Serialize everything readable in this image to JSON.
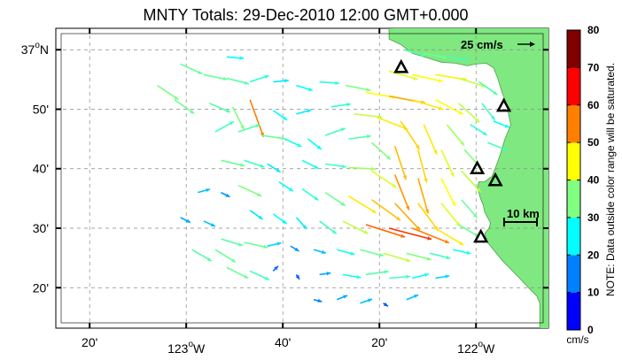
{
  "title": "MNTY Totals: 29-Dec-2010 12:00 GMT+0.000",
  "lat_labels": [
    {
      "lat": 37.0,
      "label": "37",
      "deg": "o",
      "suffix": "N",
      "major": true
    },
    {
      "lat": 36.8333,
      "label": "50'",
      "major": false
    },
    {
      "lat": 36.6667,
      "label": "40'",
      "major": false
    },
    {
      "lat": 36.5,
      "label": "30'",
      "major": false
    },
    {
      "lat": 36.3333,
      "label": "20'",
      "major": false
    }
  ],
  "lon_labels": [
    {
      "lon": -123.3333,
      "label": "20'",
      "major": false
    },
    {
      "lon": -123.0,
      "label": "123",
      "deg": "o",
      "suffix": "W",
      "major": true
    },
    {
      "lon": -122.6667,
      "label": "40'",
      "major": false
    },
    {
      "lon": -122.3333,
      "label": "20'",
      "major": false
    },
    {
      "lon": -122.0,
      "label": "122",
      "deg": "o",
      "suffix": "W",
      "major": true
    }
  ],
  "map_extent": {
    "lon": [
      -123.45,
      -121.75
    ],
    "lat": [
      36.22,
      37.06
    ]
  },
  "colorbar": {
    "min": 0,
    "max": 80,
    "ticks": [
      "0",
      "10",
      "20",
      "30",
      "40",
      "50",
      "60",
      "70",
      "80"
    ],
    "unit": "cm/s",
    "note": "NOTE: Data outside color range will be saturated.",
    "colors": [
      "#0000ff",
      "#0080ff",
      "#00ffff",
      "#80ff80",
      "#ffff00",
      "#ff8000",
      "#ff0000",
      "#800000"
    ]
  },
  "reference_vector": {
    "label": "25 cm/s",
    "speed": 25
  },
  "distance_scale": {
    "label": "10 km"
  },
  "land_color": "#80e880",
  "stations": [
    {
      "lon": -122.2583,
      "lat": 36.95
    },
    {
      "lon": -121.9042,
      "lat": 36.8417
    },
    {
      "lon": -121.9958,
      "lat": 36.6667
    },
    {
      "lon": -121.9333,
      "lat": 36.6333
    },
    {
      "lon": -121.9833,
      "lat": 36.475
    }
  ],
  "coastline": [
    [
      -122.3,
      37.06
    ],
    [
      -122.3,
      37.03
    ],
    [
      -122.26,
      37.015
    ],
    [
      -122.22,
      36.99
    ],
    [
      -122.16,
      36.975
    ],
    [
      -122.12,
      36.965
    ],
    [
      -122.07,
      36.962
    ],
    [
      -122.03,
      36.955
    ],
    [
      -122.0,
      36.96
    ],
    [
      -121.965,
      36.962
    ],
    [
      -121.94,
      36.95
    ],
    [
      -121.925,
      36.92
    ],
    [
      -121.91,
      36.88
    ],
    [
      -121.895,
      36.85
    ],
    [
      -121.89,
      36.83
    ],
    [
      -121.885,
      36.81
    ],
    [
      -121.88,
      36.79
    ],
    [
      -121.89,
      36.77
    ],
    [
      -121.9,
      36.75
    ],
    [
      -121.915,
      36.71
    ],
    [
      -121.93,
      36.675
    ],
    [
      -121.945,
      36.645
    ],
    [
      -121.97,
      36.63
    ],
    [
      -121.99,
      36.63
    ],
    [
      -121.995,
      36.615
    ],
    [
      -121.985,
      36.585
    ],
    [
      -121.975,
      36.565
    ],
    [
      -121.97,
      36.545
    ],
    [
      -121.96,
      36.53
    ],
    [
      -121.95,
      36.515
    ],
    [
      -121.955,
      36.5
    ],
    [
      -121.97,
      36.485
    ],
    [
      -121.96,
      36.46
    ],
    [
      -121.94,
      36.44
    ],
    [
      -121.91,
      36.41
    ],
    [
      -121.88,
      36.385
    ],
    [
      -121.85,
      36.36
    ],
    [
      -121.815,
      36.33
    ],
    [
      -121.79,
      36.31
    ],
    [
      -121.78,
      36.29
    ],
    [
      -121.78,
      36.22
    ]
  ],
  "vectors": [
    {
      "lon": -122.25,
      "lat": 37.0,
      "u": 28,
      "v": -8,
      "s": 32
    },
    {
      "lon": -122.18,
      "lat": 36.99,
      "u": 30,
      "v": -6,
      "s": 34
    },
    {
      "lon": -122.1,
      "lat": 36.98,
      "u": 26,
      "v": -4,
      "s": 30
    },
    {
      "lon": -122.3,
      "lat": 36.94,
      "u": 34,
      "v": -10,
      "s": 42
    },
    {
      "lon": -122.22,
      "lat": 36.93,
      "u": 36,
      "v": -8,
      "s": 44
    },
    {
      "lon": -122.14,
      "lat": 36.93,
      "u": 38,
      "v": -6,
      "s": 45
    },
    {
      "lon": -122.06,
      "lat": 36.92,
      "u": 32,
      "v": -10,
      "s": 40
    },
    {
      "lon": -121.99,
      "lat": 36.91,
      "u": 20,
      "v": -14,
      "s": 32
    },
    {
      "lon": -122.45,
      "lat": 36.9,
      "u": 30,
      "v": -6,
      "s": 36
    },
    {
      "lon": -122.38,
      "lat": 36.88,
      "u": 36,
      "v": -6,
      "s": 44
    },
    {
      "lon": -122.3,
      "lat": 36.87,
      "u": 42,
      "v": -8,
      "s": 52
    },
    {
      "lon": -122.22,
      "lat": 36.86,
      "u": 38,
      "v": -12,
      "s": 46
    },
    {
      "lon": -122.14,
      "lat": 36.86,
      "u": 30,
      "v": -16,
      "s": 44
    },
    {
      "lon": -122.06,
      "lat": 36.85,
      "u": 22,
      "v": -20,
      "s": 40
    },
    {
      "lon": -121.98,
      "lat": 36.85,
      "u": 14,
      "v": -18,
      "s": 30
    },
    {
      "lon": -122.5,
      "lat": 36.84,
      "u": 28,
      "v": 4,
      "s": 28
    },
    {
      "lon": -122.42,
      "lat": 36.82,
      "u": 34,
      "v": -4,
      "s": 40
    },
    {
      "lon": -122.34,
      "lat": 36.81,
      "u": 36,
      "v": -14,
      "s": 46
    },
    {
      "lon": -122.26,
      "lat": 36.8,
      "u": 20,
      "v": -30,
      "s": 48
    },
    {
      "lon": -122.18,
      "lat": 36.79,
      "u": 14,
      "v": -32,
      "s": 46
    },
    {
      "lon": -122.1,
      "lat": 36.79,
      "u": 18,
      "v": -22,
      "s": 38
    },
    {
      "lon": -122.02,
      "lat": 36.79,
      "u": 16,
      "v": -10,
      "s": 28
    },
    {
      "lon": -121.94,
      "lat": 36.8,
      "u": 10,
      "v": -4,
      "s": 24
    },
    {
      "lon": -122.52,
      "lat": 36.76,
      "u": 28,
      "v": 10,
      "s": 30
    },
    {
      "lon": -122.44,
      "lat": 36.75,
      "u": 30,
      "v": 4,
      "s": 32
    },
    {
      "lon": -122.36,
      "lat": 36.74,
      "u": 20,
      "v": -18,
      "s": 36
    },
    {
      "lon": -122.28,
      "lat": 36.73,
      "u": 12,
      "v": -36,
      "s": 50
    },
    {
      "lon": -122.2,
      "lat": 36.72,
      "u": 10,
      "v": -38,
      "s": 48
    },
    {
      "lon": -122.12,
      "lat": 36.72,
      "u": 14,
      "v": -30,
      "s": 42
    },
    {
      "lon": -122.04,
      "lat": 36.72,
      "u": 18,
      "v": -20,
      "s": 36
    },
    {
      "lon": -121.96,
      "lat": 36.74,
      "u": 20,
      "v": -8,
      "s": 30
    },
    {
      "lon": -122.6,
      "lat": 36.69,
      "u": 24,
      "v": -12,
      "s": 26
    },
    {
      "lon": -122.52,
      "lat": 36.68,
      "u": 28,
      "v": -4,
      "s": 30
    },
    {
      "lon": -122.44,
      "lat": 36.67,
      "u": 34,
      "v": -2,
      "s": 38
    },
    {
      "lon": -122.36,
      "lat": 36.66,
      "u": 30,
      "v": -20,
      "s": 42
    },
    {
      "lon": -122.28,
      "lat": 36.65,
      "u": 16,
      "v": -40,
      "s": 54
    },
    {
      "lon": -122.2,
      "lat": 36.64,
      "u": 12,
      "v": -42,
      "s": 52
    },
    {
      "lon": -122.12,
      "lat": 36.64,
      "u": 16,
      "v": -32,
      "s": 44
    },
    {
      "lon": -122.05,
      "lat": 36.66,
      "u": 20,
      "v": -22,
      "s": 40
    },
    {
      "lon": -122.68,
      "lat": 36.63,
      "u": 24,
      "v": -16,
      "s": 24
    },
    {
      "lon": -122.6,
      "lat": 36.61,
      "u": 26,
      "v": -18,
      "s": 28
    },
    {
      "lon": -122.52,
      "lat": 36.6,
      "u": 30,
      "v": -20,
      "s": 34
    },
    {
      "lon": -122.44,
      "lat": 36.59,
      "u": 36,
      "v": -22,
      "s": 46
    },
    {
      "lon": -122.36,
      "lat": 36.58,
      "u": 36,
      "v": -26,
      "s": 50
    },
    {
      "lon": -122.28,
      "lat": 36.57,
      "u": 28,
      "v": -30,
      "s": 52
    },
    {
      "lon": -122.2,
      "lat": 36.57,
      "u": 22,
      "v": -30,
      "s": 48
    },
    {
      "lon": -122.12,
      "lat": 36.57,
      "u": 18,
      "v": -22,
      "s": 42
    },
    {
      "lon": -122.05,
      "lat": 36.58,
      "u": 12,
      "v": -14,
      "s": 34
    },
    {
      "lon": -122.78,
      "lat": 36.55,
      "u": 20,
      "v": -14,
      "s": 22
    },
    {
      "lon": -122.7,
      "lat": 36.54,
      "u": 22,
      "v": -16,
      "s": 24
    },
    {
      "lon": -122.62,
      "lat": 36.53,
      "u": 18,
      "v": -20,
      "s": 22
    },
    {
      "lon": -122.54,
      "lat": 36.52,
      "u": 24,
      "v": -18,
      "s": 30
    },
    {
      "lon": -122.46,
      "lat": 36.52,
      "u": 32,
      "v": -16,
      "s": 40
    },
    {
      "lon": -122.38,
      "lat": 36.51,
      "u": 44,
      "v": -14,
      "s": 58
    },
    {
      "lon": -122.3,
      "lat": 36.5,
      "u": 46,
      "v": -12,
      "s": 62
    },
    {
      "lon": -122.22,
      "lat": 36.5,
      "u": 40,
      "v": -16,
      "s": 56
    },
    {
      "lon": -122.14,
      "lat": 36.5,
      "u": 30,
      "v": -18,
      "s": 46
    },
    {
      "lon": -122.06,
      "lat": 36.51,
      "u": 20,
      "v": -12,
      "s": 34
    },
    {
      "lon": -122.88,
      "lat": 36.47,
      "u": 26,
      "v": -8,
      "s": 32
    },
    {
      "lon": -122.8,
      "lat": 36.46,
      "u": 28,
      "v": -6,
      "s": 34
    },
    {
      "lon": -122.72,
      "lat": 36.45,
      "u": 18,
      "v": 4,
      "s": 20
    },
    {
      "lon": -122.64,
      "lat": 36.45,
      "u": 10,
      "v": -6,
      "s": 14
    },
    {
      "lon": -122.56,
      "lat": 36.44,
      "u": 14,
      "v": -4,
      "s": 18
    },
    {
      "lon": -122.48,
      "lat": 36.44,
      "u": 22,
      "v": -6,
      "s": 26
    },
    {
      "lon": -122.4,
      "lat": 36.44,
      "u": 30,
      "v": -8,
      "s": 34
    },
    {
      "lon": -122.32,
      "lat": 36.43,
      "u": 34,
      "v": -10,
      "s": 40
    },
    {
      "lon": -122.24,
      "lat": 36.43,
      "u": 30,
      "v": -8,
      "s": 36
    },
    {
      "lon": -122.16,
      "lat": 36.43,
      "u": 24,
      "v": -6,
      "s": 30
    },
    {
      "lon": -122.08,
      "lat": 36.44,
      "u": 18,
      "v": -4,
      "s": 26
    },
    {
      "lon": -122.86,
      "lat": 36.39,
      "u": 24,
      "v": -12,
      "s": 34
    },
    {
      "lon": -122.78,
      "lat": 36.38,
      "u": 22,
      "v": -10,
      "s": 30
    },
    {
      "lon": -122.7,
      "lat": 36.38,
      "u": 6,
      "v": 6,
      "s": 10
    },
    {
      "lon": -122.62,
      "lat": 36.37,
      "u": 4,
      "v": -6,
      "s": 8
    },
    {
      "lon": -122.54,
      "lat": 36.37,
      "u": 14,
      "v": 2,
      "s": 16
    },
    {
      "lon": -122.46,
      "lat": 36.37,
      "u": 24,
      "v": -4,
      "s": 26
    },
    {
      "lon": -122.38,
      "lat": 36.37,
      "u": 28,
      "v": 4,
      "s": 32
    },
    {
      "lon": -122.3,
      "lat": 36.36,
      "u": 24,
      "v": 2,
      "s": 30
    },
    {
      "lon": -122.22,
      "lat": 36.36,
      "u": 16,
      "v": 4,
      "s": 24
    },
    {
      "lon": -122.14,
      "lat": 36.36,
      "u": 12,
      "v": 2,
      "s": 20
    },
    {
      "lon": -122.56,
      "lat": 36.3,
      "u": 8,
      "v": -2,
      "s": 12
    },
    {
      "lon": -122.48,
      "lat": 36.3,
      "u": 10,
      "v": 4,
      "s": 16
    },
    {
      "lon": -122.4,
      "lat": 36.29,
      "u": 12,
      "v": 4,
      "s": 18
    },
    {
      "lon": -122.32,
      "lat": 36.29,
      "u": 6,
      "v": -4,
      "s": 8
    },
    {
      "lon": -122.24,
      "lat": 36.3,
      "u": 10,
      "v": 4,
      "s": 18
    },
    {
      "lon": -122.94,
      "lat": 36.93,
      "u": 20,
      "v": -4,
      "s": 34
    },
    {
      "lon": -122.86,
      "lat": 36.92,
      "u": 24,
      "v": -6,
      "s": 32
    },
    {
      "lon": -122.78,
      "lat": 36.91,
      "u": 18,
      "v": 6,
      "s": 28
    },
    {
      "lon": -122.7,
      "lat": 36.91,
      "u": 22,
      "v": 2,
      "s": 22
    },
    {
      "lon": -122.62,
      "lat": 36.9,
      "u": 26,
      "v": -8,
      "s": 24
    },
    {
      "lon": -122.54,
      "lat": 36.91,
      "u": 28,
      "v": -2,
      "s": 28
    },
    {
      "lon": -122.92,
      "lat": 36.85,
      "u": 14,
      "v": -6,
      "s": 32
    },
    {
      "lon": -122.84,
      "lat": 36.84,
      "u": 10,
      "v": -20,
      "s": 36
    },
    {
      "lon": -122.78,
      "lat": 36.86,
      "u": 8,
      "v": -22,
      "s": 56
    },
    {
      "lon": -122.7,
      "lat": 36.83,
      "u": 20,
      "v": -14,
      "s": 24
    },
    {
      "lon": -122.62,
      "lat": 36.82,
      "u": 22,
      "v": 6,
      "s": 22
    },
    {
      "lon": -122.9,
      "lat": 36.77,
      "u": 18,
      "v": 10,
      "s": 30
    },
    {
      "lon": -122.82,
      "lat": 36.77,
      "u": 24,
      "v": 8,
      "s": 32
    },
    {
      "lon": -122.74,
      "lat": 36.76,
      "u": 28,
      "v": -4,
      "s": 34
    },
    {
      "lon": -122.66,
      "lat": 36.75,
      "u": 22,
      "v": -10,
      "s": 26
    },
    {
      "lon": -122.58,
      "lat": 36.75,
      "u": 18,
      "v": -14,
      "s": 24
    },
    {
      "lon": -122.88,
      "lat": 36.69,
      "u": 26,
      "v": -6,
      "s": 34
    },
    {
      "lon": -122.8,
      "lat": 36.69,
      "u": 24,
      "v": -8,
      "s": 30
    },
    {
      "lon": -122.72,
      "lat": 36.68,
      "u": 16,
      "v": -10,
      "s": 22
    },
    {
      "lon": -122.96,
      "lat": 36.6,
      "u": 22,
      "v": 6,
      "s": 18
    },
    {
      "lon": -122.88,
      "lat": 36.6,
      "u": 16,
      "v": -8,
      "s": 14
    },
    {
      "lon": -122.82,
      "lat": 36.62,
      "u": 30,
      "v": -14,
      "s": 36
    },
    {
      "lon": -123.02,
      "lat": 36.53,
      "u": 16,
      "v": -8,
      "s": 16
    },
    {
      "lon": -122.94,
      "lat": 36.52,
      "u": 22,
      "v": -10,
      "s": 18
    },
    {
      "lon": -122.98,
      "lat": 36.44,
      "u": 24,
      "v": -14,
      "s": 32
    },
    {
      "lon": -122.9,
      "lat": 36.44,
      "u": 26,
      "v": -16,
      "s": 34
    },
    {
      "lon": -123.02,
      "lat": 36.96,
      "u": 22,
      "v": -10,
      "s": 34
    },
    {
      "lon": -123.1,
      "lat": 36.9,
      "u": 18,
      "v": -12,
      "s": 36
    },
    {
      "lon": -123.04,
      "lat": 36.86,
      "u": 14,
      "v": -10,
      "s": 34
    },
    {
      "lon": -122.86,
      "lat": 36.98,
      "u": 22,
      "v": -2,
      "s": 24
    }
  ]
}
